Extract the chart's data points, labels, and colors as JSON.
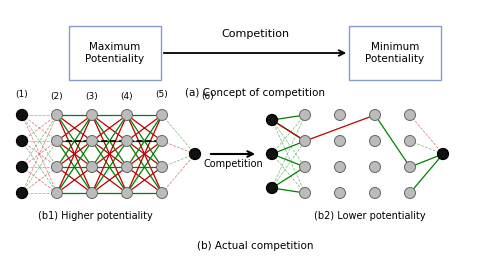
{
  "fig_width": 5.0,
  "fig_height": 2.63,
  "dpi": 100,
  "bg_color": "#ffffff",
  "box_text_max": "Maximum\nPotentiality",
  "box_text_min": "Minimum\nPotentiality",
  "arrow_label_top": "Competition",
  "caption_a": "(a) Concept of competition",
  "caption_b": "(b) Actual competition",
  "label_b1": "(b1) Higher potentiality",
  "label_b2": "(b2) Lower potentiality",
  "node_black": "#111111",
  "node_gray": "#bbbbbb",
  "node_gray_edge": "#666666",
  "green": "#008000",
  "red": "#bb0000",
  "dashed_red": "#cc5555",
  "dashed_green": "#55aa55",
  "box_edge": "#8899cc"
}
